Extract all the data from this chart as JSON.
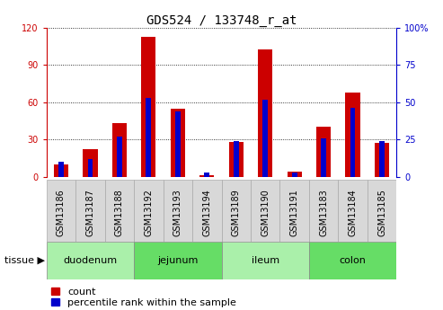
{
  "title": "GDS524 / 133748_r_at",
  "samples": [
    "GSM13186",
    "GSM13187",
    "GSM13188",
    "GSM13192",
    "GSM13193",
    "GSM13194",
    "GSM13189",
    "GSM13190",
    "GSM13191",
    "GSM13183",
    "GSM13184",
    "GSM13185"
  ],
  "count": [
    10,
    22,
    43,
    113,
    55,
    1,
    28,
    103,
    4,
    40,
    68,
    27
  ],
  "percentile": [
    10,
    12,
    27,
    53,
    44,
    3,
    24,
    52,
    3,
    26,
    46,
    24
  ],
  "tissue_groups": [
    {
      "label": "duodenum",
      "start": 0,
      "end": 3
    },
    {
      "label": "jejunum",
      "start": 3,
      "end": 6
    },
    {
      "label": "ileum",
      "start": 6,
      "end": 9
    },
    {
      "label": "colon",
      "start": 9,
      "end": 12
    }
  ],
  "left_ylim": [
    0,
    120
  ],
  "right_ylim": [
    0,
    100
  ],
  "left_yticks": [
    0,
    30,
    60,
    90,
    120
  ],
  "right_yticks": [
    0,
    25,
    50,
    75,
    100
  ],
  "left_tick_color": "#cc0000",
  "right_tick_color": "#0000cc",
  "bar_color_red": "#cc0000",
  "bar_color_blue": "#0000cc",
  "plot_bg": "#ffffff",
  "title_fontsize": 10,
  "tick_fontsize": 7,
  "legend_fontsize": 8,
  "sample_box_color": "#d8d8d8",
  "tissue_green_light": "#aaf0aa",
  "tissue_green_dark": "#66dd66"
}
